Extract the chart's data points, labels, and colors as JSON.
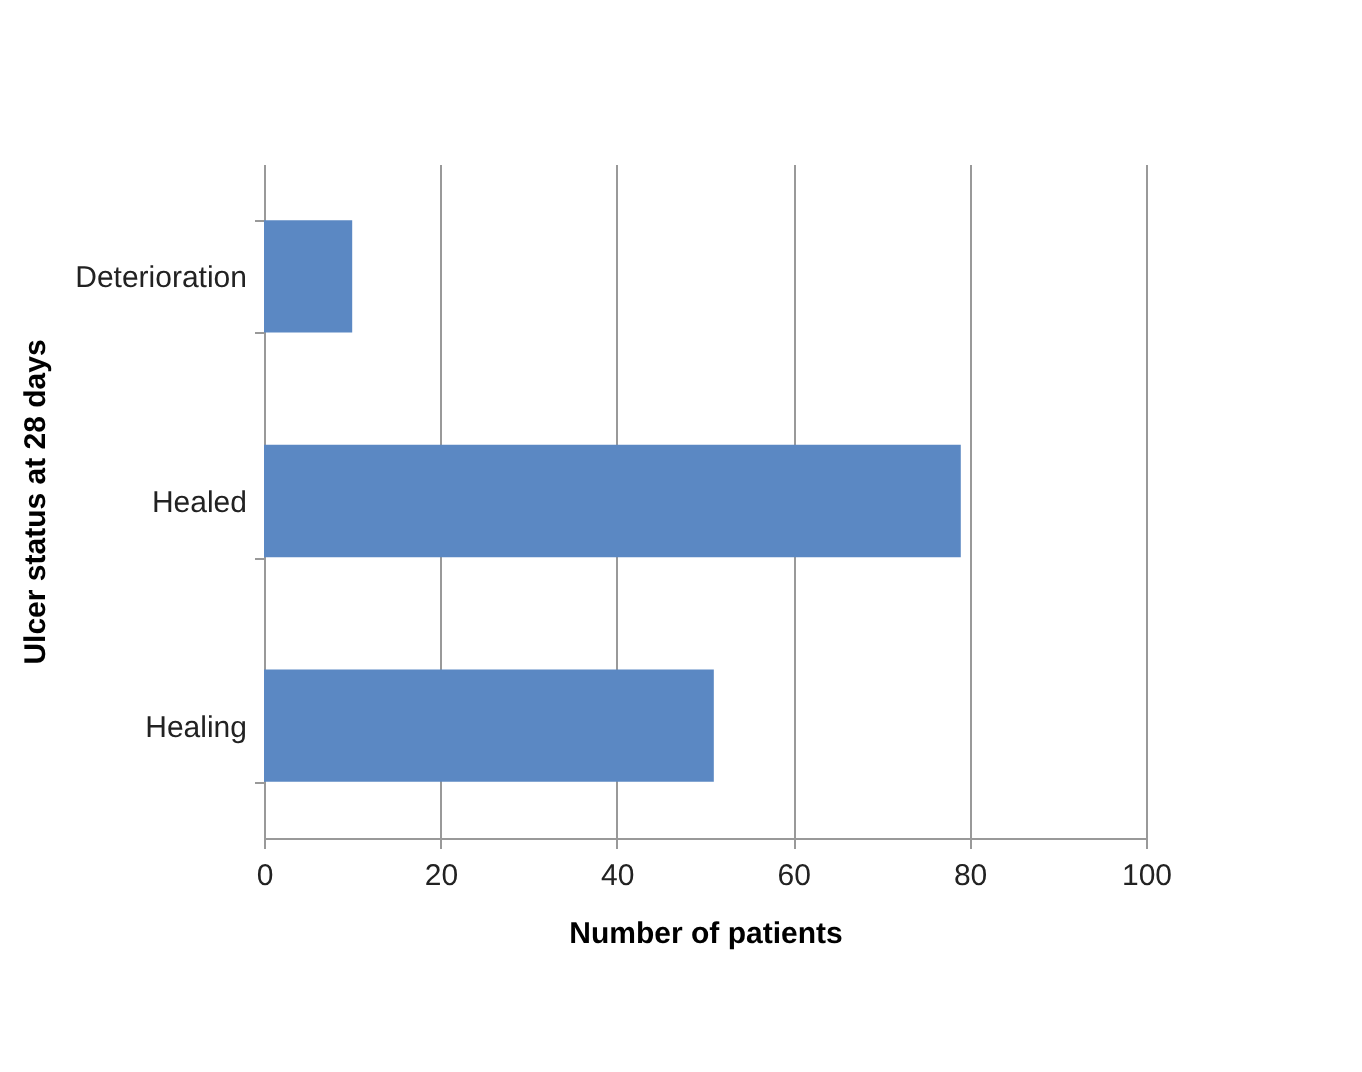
{
  "chart_data": {
    "type": "bar",
    "orientation": "horizontal",
    "categories": [
      "Deterioration",
      "Healed",
      "Healing"
    ],
    "values": [
      10,
      79,
      51
    ],
    "color": "#5b88c3",
    "xlabel": "Number of patients",
    "ylabel": "Ulcer status at 28 days",
    "xlim": [
      0,
      100
    ],
    "xticks": [
      0,
      20,
      40,
      60,
      80,
      100
    ],
    "grid": "x"
  }
}
